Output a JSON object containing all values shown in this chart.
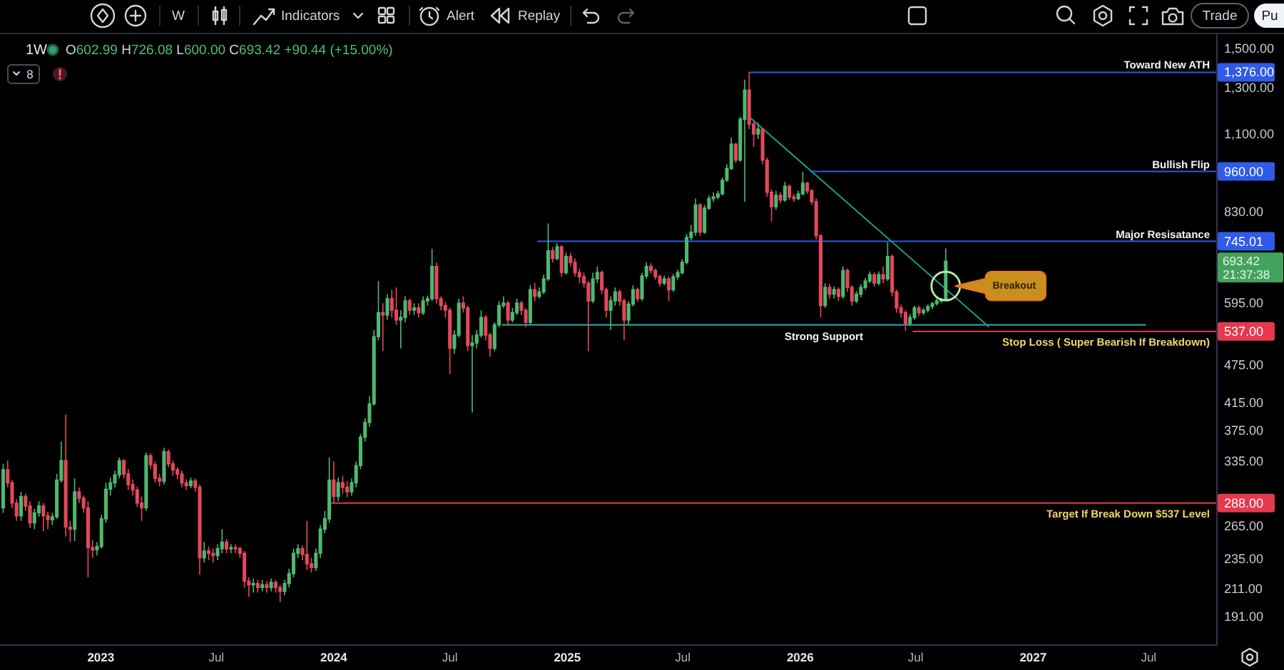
{
  "chart_data": {
    "type": "candlestick",
    "title": "1W",
    "subtitle": "O602.99 H726.08 L600.00 C693.42 +90.44 (+15.00%)",
    "log": true,
    "xlim": [
      "2022-07-27",
      "2027-10-16"
    ],
    "ylim": [
      172,
      1580
    ],
    "xticks": [
      {
        "value": "2023-01-01",
        "label": "2023"
      },
      {
        "value": "2023-07-01",
        "label": "Jul"
      },
      {
        "value": "2024-01-01",
        "label": "2024"
      },
      {
        "value": "2024-07-01",
        "label": "Jul"
      },
      {
        "value": "2025-01-01",
        "label": "2025"
      },
      {
        "value": "2025-07-01",
        "label": "Jul"
      },
      {
        "value": "2026-01-01",
        "label": "2026"
      },
      {
        "value": "2026-07-01",
        "label": "Jul"
      },
      {
        "value": "2027-01-01",
        "label": "2027"
      },
      {
        "value": "2027-07-01",
        "label": "Jul"
      }
    ],
    "yticks": [
      {
        "value": 1500,
        "label": "1,500.00"
      },
      {
        "value": 1300,
        "label": "1,300.00"
      },
      {
        "value": 1100,
        "label": "1,100.00"
      },
      {
        "value": 830,
        "label": "830.00"
      },
      {
        "value": 595,
        "label": "595.00"
      },
      {
        "value": 475,
        "label": "475.00"
      },
      {
        "value": 415,
        "label": "415.00"
      },
      {
        "value": 375,
        "label": "375.00"
      },
      {
        "value": 335,
        "label": "335.00"
      },
      {
        "value": 265,
        "label": "265.00"
      },
      {
        "value": 235,
        "label": "235.00"
      },
      {
        "value": 211,
        "label": "211.00"
      },
      {
        "value": 191,
        "label": "191.00"
      }
    ],
    "x": [
      "2022-08-01",
      "2022-08-08",
      "2022-08-15",
      "2022-08-22",
      "2022-08-29",
      "2022-09-05",
      "2022-09-12",
      "2022-09-19",
      "2022-09-26",
      "2022-10-03",
      "2022-10-10",
      "2022-10-17",
      "2022-10-24",
      "2022-10-31",
      "2022-11-07",
      "2022-11-14",
      "2022-11-21",
      "2022-11-28",
      "2022-12-05",
      "2022-12-12",
      "2022-12-19",
      "2022-12-26",
      "2023-01-02",
      "2023-01-09",
      "2023-01-16",
      "2023-01-23",
      "2023-01-30",
      "2023-02-06",
      "2023-02-13",
      "2023-02-20",
      "2023-02-27",
      "2023-03-06",
      "2023-03-13",
      "2023-03-20",
      "2023-03-27",
      "2023-04-03",
      "2023-04-10",
      "2023-04-17",
      "2023-04-24",
      "2023-05-01",
      "2023-05-08",
      "2023-05-15",
      "2023-05-22",
      "2023-05-29",
      "2023-06-05",
      "2023-06-12",
      "2023-06-19",
      "2023-06-26",
      "2023-07-03",
      "2023-07-10",
      "2023-07-17",
      "2023-07-24",
      "2023-07-31",
      "2023-08-07",
      "2023-08-14",
      "2023-08-21",
      "2023-08-28",
      "2023-09-04",
      "2023-09-11",
      "2023-09-18",
      "2023-09-25",
      "2023-10-02",
      "2023-10-09",
      "2023-10-16",
      "2023-10-23",
      "2023-10-30",
      "2023-11-06",
      "2023-11-13",
      "2023-11-20",
      "2023-11-27",
      "2023-12-04",
      "2023-12-11",
      "2023-12-18",
      "2023-12-25",
      "2024-01-01",
      "2024-01-08",
      "2024-01-15",
      "2024-01-22",
      "2024-01-29",
      "2024-02-05",
      "2024-02-12",
      "2024-02-19",
      "2024-02-26",
      "2024-03-04",
      "2024-03-11",
      "2024-03-18",
      "2024-03-25",
      "2024-04-01",
      "2024-04-08",
      "2024-04-15",
      "2024-04-22",
      "2024-04-29",
      "2024-05-06",
      "2024-05-13",
      "2024-05-20",
      "2024-05-27",
      "2024-06-03",
      "2024-06-10",
      "2024-06-17",
      "2024-06-24",
      "2024-07-01",
      "2024-07-08",
      "2024-07-15",
      "2024-07-22",
      "2024-07-29",
      "2024-08-05",
      "2024-08-12",
      "2024-08-19",
      "2024-08-26",
      "2024-09-02",
      "2024-09-09",
      "2024-09-16",
      "2024-09-23",
      "2024-09-30",
      "2024-10-07",
      "2024-10-14",
      "2024-10-21",
      "2024-10-28",
      "2024-11-04",
      "2024-11-11",
      "2024-11-18",
      "2024-11-25",
      "2024-12-02",
      "2024-12-09",
      "2024-12-16",
      "2024-12-23",
      "2024-12-30",
      "2025-01-06",
      "2025-01-13",
      "2025-01-20",
      "2025-01-27",
      "2025-02-03",
      "2025-02-10",
      "2025-02-17",
      "2025-02-24",
      "2025-03-03",
      "2025-03-10",
      "2025-03-17",
      "2025-03-24",
      "2025-03-31",
      "2025-04-07",
      "2025-04-14",
      "2025-04-21",
      "2025-04-28",
      "2025-05-05",
      "2025-05-12",
      "2025-05-19",
      "2025-05-26",
      "2025-06-02",
      "2025-06-09",
      "2025-06-16",
      "2025-06-23",
      "2025-06-30",
      "2025-07-07",
      "2025-07-14",
      "2025-07-21",
      "2025-07-28",
      "2025-08-04",
      "2025-08-11",
      "2025-08-18",
      "2025-08-25",
      "2025-09-01",
      "2025-09-08",
      "2025-09-15",
      "2025-09-22",
      "2025-09-29",
      "2025-10-06",
      "2025-10-13",
      "2025-10-20",
      "2025-10-27",
      "2025-11-03",
      "2025-11-10",
      "2025-11-17",
      "2025-11-24",
      "2025-12-01",
      "2025-12-08",
      "2025-12-15",
      "2025-12-22",
      "2025-12-29",
      "2026-01-05",
      "2026-01-12",
      "2026-01-19",
      "2026-01-26",
      "2026-02-02",
      "2026-02-09",
      "2026-02-16",
      "2026-02-23",
      "2026-03-02",
      "2026-03-09",
      "2026-03-16",
      "2026-03-23",
      "2026-03-30",
      "2026-04-06",
      "2026-04-13",
      "2026-04-20",
      "2026-04-27",
      "2026-05-04",
      "2026-05-11",
      "2026-05-18",
      "2026-05-25",
      "2026-06-01",
      "2026-06-08",
      "2026-06-15",
      "2026-06-22",
      "2026-06-29",
      "2026-07-06",
      "2026-07-13",
      "2026-07-20",
      "2026-07-27",
      "2026-08-03",
      "2026-08-10",
      "2026-08-17"
    ],
    "ohlc": [
      [
        283,
        332,
        278,
        325
      ],
      [
        325,
        336,
        305,
        310
      ],
      [
        310,
        313,
        283,
        288
      ],
      [
        288,
        292,
        270,
        275
      ],
      [
        275,
        300,
        270,
        295
      ],
      [
        295,
        298,
        280,
        285
      ],
      [
        285,
        290,
        263,
        268
      ],
      [
        268,
        282,
        262,
        278
      ],
      [
        278,
        290,
        274,
        285
      ],
      [
        285,
        288,
        260,
        275
      ],
      [
        275,
        279,
        262,
        271
      ],
      [
        271,
        278,
        266,
        274
      ],
      [
        274,
        320,
        272,
        313
      ],
      [
        313,
        360,
        310,
        336
      ],
      [
        336,
        397,
        255,
        264
      ],
      [
        264,
        270,
        250,
        262
      ],
      [
        262,
        315,
        251,
        300
      ],
      [
        300,
        305,
        288,
        293
      ],
      [
        293,
        296,
        278,
        283
      ],
      [
        283,
        290,
        220,
        245
      ],
      [
        245,
        252,
        236,
        243
      ],
      [
        243,
        250,
        238,
        246
      ],
      [
        246,
        276,
        244,
        272
      ],
      [
        272,
        310,
        268,
        303
      ],
      [
        303,
        316,
        296,
        310
      ],
      [
        310,
        324,
        305,
        319
      ],
      [
        319,
        340,
        315,
        336
      ],
      [
        336,
        338,
        315,
        320
      ],
      [
        320,
        326,
        302,
        308
      ],
      [
        308,
        314,
        296,
        302
      ],
      [
        302,
        306,
        284,
        288
      ],
      [
        288,
        295,
        270,
        283
      ],
      [
        283,
        346,
        280,
        342
      ],
      [
        342,
        345,
        326,
        331
      ],
      [
        331,
        335,
        310,
        315
      ],
      [
        315,
        320,
        306,
        312
      ],
      [
        312,
        352,
        308,
        347
      ],
      [
        347,
        350,
        328,
        332
      ],
      [
        332,
        336,
        318,
        325
      ],
      [
        325,
        328,
        314,
        320
      ],
      [
        320,
        324,
        305,
        310
      ],
      [
        310,
        314,
        302,
        307
      ],
      [
        307,
        316,
        304,
        312
      ],
      [
        312,
        315,
        300,
        305
      ],
      [
        305,
        308,
        222,
        236
      ],
      [
        236,
        250,
        232,
        242
      ],
      [
        242,
        246,
        234,
        240
      ],
      [
        240,
        244,
        232,
        238
      ],
      [
        238,
        248,
        234,
        244
      ],
      [
        244,
        262,
        240,
        250
      ],
      [
        250,
        253,
        240,
        244
      ],
      [
        244,
        248,
        240,
        245
      ],
      [
        245,
        248,
        240,
        244
      ],
      [
        244,
        246,
        236,
        240
      ],
      [
        240,
        242,
        212,
        217
      ],
      [
        217,
        220,
        205,
        214
      ],
      [
        214,
        219,
        208,
        215
      ],
      [
        215,
        218,
        208,
        212
      ],
      [
        212,
        218,
        209,
        214
      ],
      [
        214,
        217,
        208,
        212
      ],
      [
        212,
        219,
        209,
        216
      ],
      [
        216,
        218,
        208,
        212
      ],
      [
        212,
        214,
        201,
        209
      ],
      [
        209,
        218,
        206,
        215
      ],
      [
        215,
        227,
        212,
        223
      ],
      [
        223,
        244,
        220,
        240
      ],
      [
        240,
        248,
        236,
        244
      ],
      [
        244,
        247,
        234,
        239
      ],
      [
        239,
        270,
        226,
        231
      ],
      [
        231,
        236,
        224,
        228
      ],
      [
        228,
        244,
        225,
        240
      ],
      [
        240,
        266,
        236,
        262
      ],
      [
        262,
        280,
        258,
        272
      ],
      [
        272,
        340,
        268,
        313
      ],
      [
        313,
        335,
        288,
        295
      ],
      [
        295,
        316,
        290,
        310
      ],
      [
        310,
        318,
        298,
        305
      ],
      [
        305,
        312,
        294,
        300
      ],
      [
        300,
        315,
        296,
        310
      ],
      [
        310,
        335,
        305,
        330
      ],
      [
        330,
        370,
        326,
        366
      ],
      [
        366,
        392,
        360,
        386
      ],
      [
        386,
        425,
        380,
        413
      ],
      [
        413,
        540,
        410,
        527
      ],
      [
        527,
        645,
        520,
        575
      ],
      [
        575,
        595,
        500,
        570
      ],
      [
        570,
        615,
        560,
        605
      ],
      [
        605,
        625,
        565,
        580
      ],
      [
        580,
        630,
        550,
        560
      ],
      [
        560,
        580,
        505,
        565
      ],
      [
        565,
        610,
        555,
        600
      ],
      [
        600,
        605,
        570,
        580
      ],
      [
        580,
        595,
        570,
        585
      ],
      [
        585,
        595,
        565,
        575
      ],
      [
        575,
        610,
        570,
        600
      ],
      [
        600,
        612,
        590,
        605
      ],
      [
        605,
        725,
        600,
        680
      ],
      [
        680,
        690,
        595,
        605
      ],
      [
        605,
        610,
        580,
        590
      ],
      [
        590,
        598,
        565,
        580
      ],
      [
        580,
        585,
        460,
        505
      ],
      [
        505,
        540,
        495,
        530
      ],
      [
        530,
        605,
        525,
        595
      ],
      [
        595,
        610,
        575,
        585
      ],
      [
        585,
        590,
        500,
        510
      ],
      [
        510,
        530,
        400,
        515
      ],
      [
        515,
        540,
        505,
        530
      ],
      [
        530,
        580,
        525,
        565
      ],
      [
        565,
        570,
        520,
        530
      ],
      [
        530,
        535,
        490,
        505
      ],
      [
        505,
        555,
        500,
        550
      ],
      [
        550,
        600,
        545,
        590
      ],
      [
        590,
        610,
        585,
        595
      ],
      [
        595,
        600,
        550,
        560
      ],
      [
        560,
        585,
        555,
        575
      ],
      [
        575,
        605,
        570,
        595
      ],
      [
        595,
        600,
        570,
        580
      ],
      [
        580,
        585,
        545,
        555
      ],
      [
        555,
        635,
        550,
        625
      ],
      [
        625,
        640,
        600,
        610
      ],
      [
        610,
        630,
        605,
        620
      ],
      [
        620,
        660,
        615,
        650
      ],
      [
        650,
        795,
        645,
        720
      ],
      [
        720,
        730,
        690,
        700
      ],
      [
        700,
        740,
        695,
        730
      ],
      [
        730,
        735,
        655,
        665
      ],
      [
        665,
        715,
        660,
        705
      ],
      [
        705,
        715,
        680,
        690
      ],
      [
        690,
        700,
        655,
        665
      ],
      [
        665,
        675,
        640,
        655
      ],
      [
        655,
        665,
        630,
        640
      ],
      [
        640,
        645,
        500,
        600
      ],
      [
        600,
        665,
        595,
        650
      ],
      [
        650,
        680,
        640,
        665
      ],
      [
        665,
        670,
        615,
        625
      ],
      [
        625,
        630,
        565,
        580
      ],
      [
        580,
        610,
        540,
        600
      ],
      [
        600,
        630,
        590,
        620
      ],
      [
        620,
        625,
        590,
        600
      ],
      [
        600,
        605,
        520,
        560
      ],
      [
        560,
        600,
        550,
        593
      ],
      [
        593,
        635,
        588,
        625
      ],
      [
        625,
        630,
        598,
        605
      ],
      [
        605,
        665,
        600,
        657
      ],
      [
        657,
        690,
        650,
        680
      ],
      [
        680,
        688,
        662,
        670
      ],
      [
        670,
        675,
        648,
        655
      ],
      [
        655,
        660,
        632,
        640
      ],
      [
        640,
        658,
        635,
        650
      ],
      [
        650,
        655,
        600,
        625
      ],
      [
        625,
        662,
        620,
        655
      ],
      [
        655,
        672,
        648,
        665
      ],
      [
        665,
        698,
        660,
        690
      ],
      [
        690,
        765,
        685,
        755
      ],
      [
        755,
        790,
        748,
        770
      ],
      [
        770,
        870,
        760,
        850
      ],
      [
        850,
        855,
        760,
        770
      ],
      [
        770,
        850,
        765,
        840
      ],
      [
        840,
        880,
        835,
        870
      ],
      [
        870,
        890,
        860,
        875
      ],
      [
        875,
        895,
        868,
        885
      ],
      [
        885,
        940,
        880,
        930
      ],
      [
        930,
        985,
        925,
        970
      ],
      [
        970,
        1085,
        965,
        1060
      ],
      [
        1060,
        1065,
        990,
        1000
      ],
      [
        1000,
        1170,
        995,
        1160
      ],
      [
        1160,
        1340,
        860,
        1290
      ],
      [
        1290,
        1376,
        1120,
        1140
      ],
      [
        1140,
        1150,
        1050,
        1100
      ],
      [
        1100,
        1145,
        1080,
        1120
      ],
      [
        1120,
        1125,
        985,
        1000
      ],
      [
        1000,
        1010,
        875,
        890
      ],
      [
        890,
        900,
        800,
        845
      ],
      [
        845,
        895,
        835,
        880
      ],
      [
        880,
        890,
        855,
        865
      ],
      [
        865,
        925,
        860,
        910
      ],
      [
        910,
        915,
        865,
        875
      ],
      [
        875,
        885,
        860,
        870
      ],
      [
        870,
        895,
        865,
        885
      ],
      [
        885,
        958,
        880,
        920
      ],
      [
        920,
        925,
        885,
        895
      ],
      [
        895,
        900,
        850,
        860
      ],
      [
        860,
        870,
        750,
        760
      ],
      [
        760,
        765,
        565,
        590
      ],
      [
        590,
        640,
        585,
        630
      ],
      [
        630,
        638,
        605,
        615
      ],
      [
        615,
        632,
        605,
        625
      ],
      [
        625,
        630,
        600,
        610
      ],
      [
        610,
        680,
        605,
        670
      ],
      [
        670,
        675,
        620,
        630
      ],
      [
        630,
        635,
        590,
        600
      ],
      [
        600,
        622,
        595,
        615
      ],
      [
        615,
        638,
        608,
        630
      ],
      [
        630,
        652,
        625,
        645
      ],
      [
        645,
        668,
        640,
        660
      ],
      [
        660,
        665,
        632,
        640
      ],
      [
        640,
        668,
        635,
        660
      ],
      [
        660,
        680,
        640,
        650
      ],
      [
        650,
        742,
        645,
        705
      ],
      [
        705,
        710,
        610,
        620
      ],
      [
        620,
        625,
        575,
        585
      ],
      [
        585,
        592,
        565,
        575
      ],
      [
        575,
        580,
        538,
        553
      ],
      [
        553,
        572,
        548,
        565
      ],
      [
        565,
        590,
        560,
        585
      ],
      [
        585,
        590,
        568,
        575
      ],
      [
        575,
        585,
        570,
        580
      ],
      [
        580,
        592,
        575,
        588
      ],
      [
        588,
        598,
        582,
        594
      ],
      [
        594,
        605,
        590,
        600
      ],
      [
        600,
        607,
        595,
        602.99
      ],
      [
        602.99,
        726.08,
        600,
        693.42
      ]
    ],
    "series": [
      {
        "type": "line",
        "name": "Toward New ATH",
        "color": "#2f5be8",
        "x": [
          "2025-10-13",
          "2027-10-16"
        ],
        "values": [
          1376,
          1376
        ],
        "value_labels": [
          null,
          "1,376.00"
        ]
      },
      {
        "type": "line",
        "name": "Bullish Flip",
        "color": "#2f5be8",
        "x": [
          "2026-01-17",
          "2027-10-16"
        ],
        "values": [
          960,
          960
        ],
        "value_labels": [
          null,
          "960.00"
        ]
      },
      {
        "type": "line",
        "name": "Major Resisatance",
        "color": "#2f5be8",
        "x": [
          "2024-11-16",
          "2027-10-16"
        ],
        "values": [
          745.01,
          745.01
        ],
        "value_labels": [
          null,
          "745.01"
        ]
      },
      {
        "type": "line",
        "name": "Stop Loss ( Super Bearish If Breakdown)",
        "color": "#e53950",
        "x": [
          "2026-06-27",
          "2027-10-16"
        ],
        "values": [
          537,
          537
        ],
        "value_labels": [
          null,
          "537.00"
        ]
      },
      {
        "type": "line",
        "name": "Target If Break Down $537 Level",
        "color": "#e53950",
        "x": [
          "2023-12-29",
          "2027-10-16"
        ],
        "values": [
          288,
          288
        ],
        "value_labels": [
          null,
          "288.00"
        ]
      },
      {
        "type": "line",
        "name": "Strong Support",
        "color": "#31a6b0",
        "x": [
          "2024-09-21",
          "2027-06-26"
        ],
        "values": [
          550,
          550
        ]
      },
      {
        "type": "line",
        "color": "#1f9c8a",
        "x": [
          "2025-10-15",
          "2026-10-23"
        ],
        "values": [
          1166,
          547
        ]
      }
    ],
    "annotations": [
      "W",
      "Indicators",
      "Alert",
      "Replay",
      "Trade",
      "Pu",
      "8",
      "693.42",
      "21:37:38",
      "Breakout"
    ]
  }
}
